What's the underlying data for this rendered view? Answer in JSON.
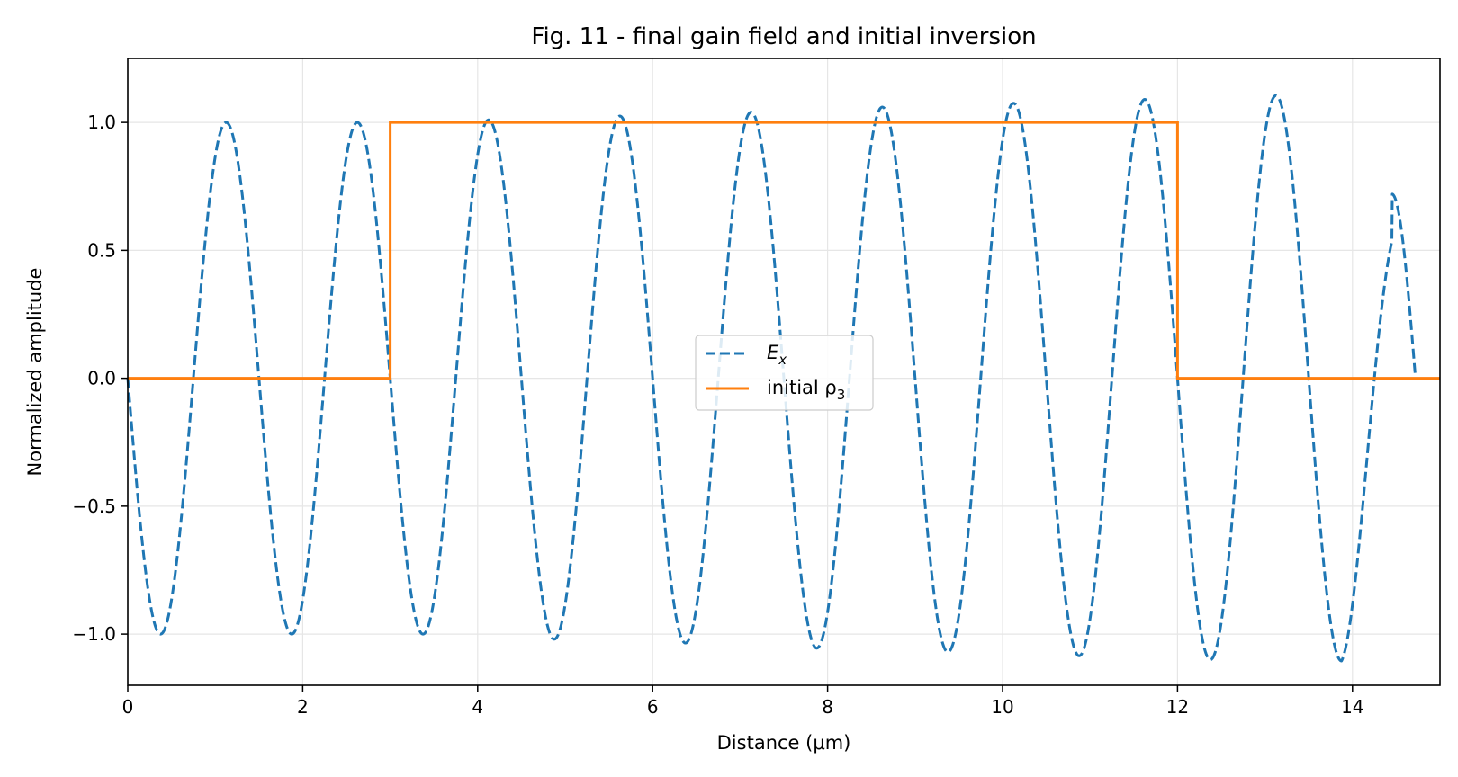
{
  "chart_data": {
    "type": "line",
    "title": "Fig. 11 - final gain field and initial inversion",
    "xlabel": "Distance (μm)",
    "ylabel": "Normalized amplitude",
    "xlim": [
      0,
      15
    ],
    "ylim": [
      -1.2,
      1.25
    ],
    "xticks": [
      0,
      2,
      4,
      6,
      8,
      10,
      12,
      14
    ],
    "xtick_labels": [
      "0",
      "2",
      "4",
      "6",
      "8",
      "10",
      "12",
      "14"
    ],
    "yticks": [
      -1.0,
      -0.5,
      0.0,
      0.5,
      1.0
    ],
    "ytick_labels": [
      "−1.0",
      "−0.5",
      "0.0",
      "0.5",
      "1.0"
    ],
    "grid": true,
    "legend_position": "center",
    "series": [
      {
        "name": "E_x",
        "legend_main": "E",
        "legend_sub": "x",
        "style": "dashed",
        "color": "#1f77b4",
        "wavelength": 1.5,
        "x_end": 14.72,
        "extrema": [
          [
            0.375,
            -1.0
          ],
          [
            1.125,
            1.0
          ],
          [
            1.875,
            -1.0
          ],
          [
            2.625,
            1.0
          ],
          [
            3.375,
            -1.0
          ],
          [
            4.125,
            1.01
          ],
          [
            4.875,
            -1.02
          ],
          [
            5.625,
            1.025
          ],
          [
            6.375,
            -1.035
          ],
          [
            7.125,
            1.04
          ],
          [
            7.875,
            -1.055
          ],
          [
            8.625,
            1.06
          ],
          [
            9.375,
            -1.07
          ],
          [
            10.125,
            1.075
          ],
          [
            10.875,
            -1.085
          ],
          [
            11.625,
            1.09
          ],
          [
            12.375,
            -1.1
          ],
          [
            13.125,
            1.105
          ],
          [
            13.875,
            -1.105
          ],
          [
            14.45,
            0.72
          ]
        ],
        "end_value": 0.0
      },
      {
        "name": "initial ρ_3",
        "legend_main": "initial ρ",
        "legend_sub": "3",
        "style": "solid",
        "color": "#ff7f0e",
        "x": [
          0,
          3,
          3,
          12,
          12,
          15
        ],
        "y": [
          0,
          0,
          1,
          1,
          0,
          0
        ]
      }
    ]
  }
}
